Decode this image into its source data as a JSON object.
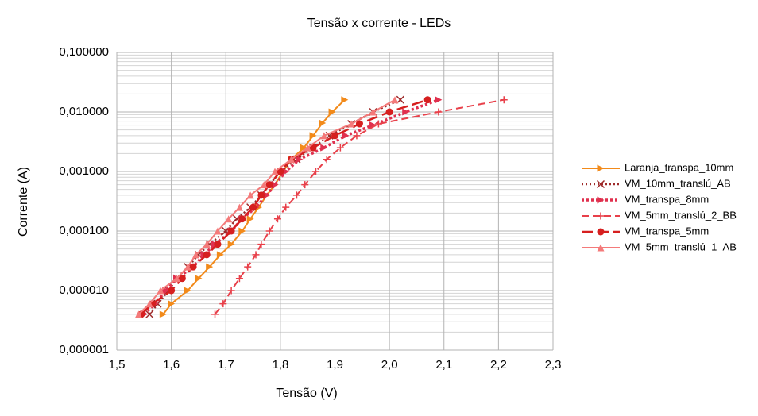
{
  "chart_data": {
    "type": "line",
    "title": "Tensão x corrente - LEDs",
    "x_label": "Tensão (V)",
    "y_label": "Corrente (A)",
    "log_y": true,
    "grid": true,
    "minor_grid": true,
    "legend": "right",
    "xlim": [
      1.5,
      2.3
    ],
    "xticks": [
      {
        "value": 1.5,
        "label": "1,5"
      },
      {
        "value": 1.6,
        "label": "1,6"
      },
      {
        "value": 1.7,
        "label": "1,7"
      },
      {
        "value": 1.8,
        "label": "1,8"
      },
      {
        "value": 1.9,
        "label": "1,9"
      },
      {
        "value": 2.0,
        "label": "2,0"
      },
      {
        "value": 2.1,
        "label": "2,1"
      },
      {
        "value": 2.2,
        "label": "2,2"
      },
      {
        "value": 2.3,
        "label": "2,3"
      }
    ],
    "ylim": [
      1e-06,
      0.1
    ],
    "yticks": [
      {
        "value": 1e-06,
        "label": "0,000001"
      },
      {
        "value": 1e-05,
        "label": "0,000010"
      },
      {
        "value": 0.0001,
        "label": "0,000100"
      },
      {
        "value": 0.001,
        "label": "0,001000"
      },
      {
        "value": 0.01,
        "label": "0,010000"
      },
      {
        "value": 0.1,
        "label": "0,100000"
      }
    ],
    "series": [
      {
        "name": "Laranja_transpa_10mm",
        "color": "#f28a1a",
        "marker": "triangle-right",
        "line_style": "solid",
        "x": [
          1.585,
          1.6,
          1.63,
          1.65,
          1.67,
          1.69,
          1.71,
          1.73,
          1.745,
          1.76,
          1.775,
          1.79,
          1.805,
          1.82,
          1.843,
          1.86,
          1.877,
          1.895,
          1.918
        ],
        "values": [
          4e-06,
          6e-06,
          1e-05,
          1.6e-05,
          2.5e-05,
          4e-05,
          6e-05,
          0.0001,
          0.00016,
          0.00025,
          0.0004,
          0.0006,
          0.001,
          0.0016,
          0.0025,
          0.004,
          0.0065,
          0.01,
          0.016
        ]
      },
      {
        "name": "VM_10mm_translú_AB",
        "color": "#9e2a2a",
        "marker": "x",
        "line_style": "dotted",
        "x": [
          1.56,
          1.575,
          1.595,
          1.61,
          1.63,
          1.65,
          1.67,
          1.7,
          1.72,
          1.745,
          1.765,
          1.78,
          1.8,
          1.83,
          1.86,
          1.89,
          1.93,
          1.97,
          2.02
        ],
        "values": [
          4e-06,
          6e-06,
          1e-05,
          1.6e-05,
          2.5e-05,
          4e-05,
          6e-05,
          0.0001,
          0.00016,
          0.00025,
          0.0004,
          0.0006,
          0.001,
          0.0016,
          0.0025,
          0.004,
          0.0063,
          0.01,
          0.016
        ]
      },
      {
        "name": "VM_transpa_8mm",
        "color": "#e0304e",
        "marker": "triangle-right",
        "line_style": "thick-dotted",
        "x": [
          1.55,
          1.57,
          1.59,
          1.61,
          1.64,
          1.66,
          1.68,
          1.71,
          1.73,
          1.755,
          1.775,
          1.79,
          1.81,
          1.835,
          1.88,
          1.92,
          1.97,
          2.03,
          2.09
        ],
        "values": [
          4e-06,
          6e-06,
          1e-05,
          1.6e-05,
          2.5e-05,
          4e-05,
          6e-05,
          0.0001,
          0.00016,
          0.00025,
          0.0004,
          0.0006,
          0.001,
          0.0016,
          0.0025,
          0.004,
          0.006,
          0.01,
          0.016
        ]
      },
      {
        "name": "VM_5mm_translú_2_BB",
        "color": "#e8404a",
        "marker": "plus",
        "line_style": "dashed",
        "x": [
          1.68,
          1.695,
          1.71,
          1.725,
          1.74,
          1.755,
          1.765,
          1.78,
          1.795,
          1.81,
          1.83,
          1.845,
          1.865,
          1.885,
          1.91,
          1.94,
          1.98,
          2.09,
          2.21
        ],
        "values": [
          4e-06,
          6e-06,
          1e-05,
          1.6e-05,
          2.5e-05,
          4e-05,
          6e-05,
          0.0001,
          0.00016,
          0.00025,
          0.0004,
          0.0006,
          0.001,
          0.0016,
          0.0025,
          0.004,
          0.0063,
          0.01,
          0.016
        ]
      },
      {
        "name": "VM_transpa_5mm",
        "color": "#d61f1f",
        "marker": "circle",
        "line_style": "long-dashed",
        "x": [
          1.545,
          1.565,
          1.6,
          1.62,
          1.64,
          1.665,
          1.685,
          1.71,
          1.73,
          1.75,
          1.765,
          1.78,
          1.8,
          1.82,
          1.86,
          1.9,
          1.945,
          2.0,
          2.07
        ],
        "values": [
          4e-06,
          6e-06,
          1e-05,
          1.6e-05,
          2.5e-05,
          4e-05,
          6e-05,
          0.0001,
          0.00016,
          0.00025,
          0.0004,
          0.0006,
          0.001,
          0.0016,
          0.0025,
          0.004,
          0.0063,
          0.01,
          0.016
        ]
      },
      {
        "name": "VM_5mm_translú_1_AB",
        "color": "#f47a7a",
        "marker": "triangle-up",
        "line_style": "solid",
        "x": [
          1.54,
          1.56,
          1.58,
          1.61,
          1.63,
          1.645,
          1.665,
          1.685,
          1.705,
          1.725,
          1.745,
          1.77,
          1.79,
          1.82,
          1.85,
          1.88,
          1.93,
          1.97,
          2.01
        ],
        "values": [
          4e-06,
          6e-06,
          1e-05,
          1.6e-05,
          2.5e-05,
          4e-05,
          6e-05,
          0.0001,
          0.00016,
          0.00025,
          0.0004,
          0.0006,
          0.001,
          0.0016,
          0.0025,
          0.004,
          0.0063,
          0.01,
          0.016
        ]
      }
    ]
  }
}
